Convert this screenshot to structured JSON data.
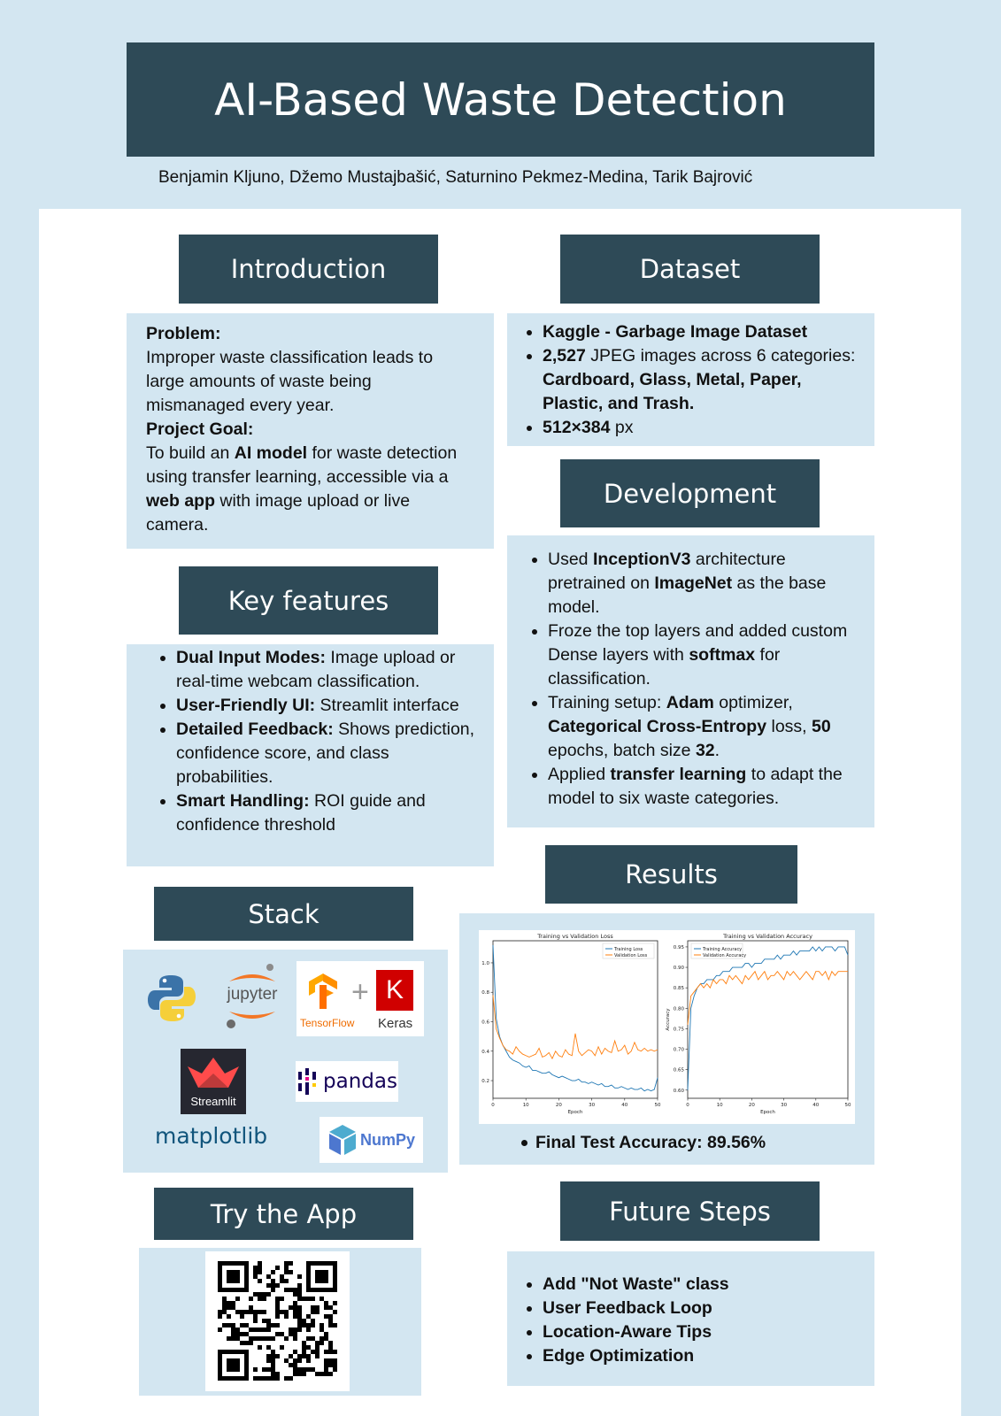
{
  "header": {
    "title": "AI-Based Waste Detection",
    "authors": "Benjamin Kljuno, Džemo Mustajbašić, Saturnino Pekmez-Medina, Tarik Bajrović"
  },
  "introduction": {
    "heading": "Introduction",
    "problem_label": "Problem:",
    "problem_text": "Improper waste classification leads to large amounts of waste being mismanaged every year.",
    "goal_label": "Project Goal:",
    "goal_1": "To build an ",
    "goal_bold_1": "AI model",
    "goal_2": " for waste detection using transfer learning, accessible via a ",
    "goal_bold_2": "web app",
    "goal_3": " with image upload or live camera."
  },
  "dataset": {
    "heading": "Dataset",
    "item1_bold": "Kaggle - Garbage Image Dataset",
    "item2_bold1": "2,527",
    "item2_text": " JPEG images across 6 categories: ",
    "item2_bold2": "Cardboard, Glass, Metal, Paper, Plastic, and Trash.",
    "item3_bold": "512×384",
    "item3_text": " px"
  },
  "key_features": {
    "heading": "Key features",
    "items": [
      {
        "label": "Dual Input Modes:",
        "text": " Image upload or real-time webcam classification."
      },
      {
        "label": "User-Friendly UI:",
        "text": " Streamlit interface"
      },
      {
        "label": "Detailed Feedback:",
        "text": " Shows prediction, confidence score, and class probabilities."
      },
      {
        "label": "Smart Handling:",
        "text": " ROI guide and confidence threshold"
      }
    ]
  },
  "development": {
    "heading": "Development",
    "i1_a": "Used ",
    "i1_b": "InceptionV3",
    "i1_c": " architecture pretrained on ",
    "i1_d": "ImageNet",
    "i1_e": " as the base model.",
    "i2_a": "Froze the top layers and added custom Dense layers with ",
    "i2_b": "softmax",
    "i2_c": " for classification.",
    "i3_a": "Training setup: ",
    "i3_b": "Adam",
    "i3_c": " optimizer, ",
    "i3_d": "Categorical Cross-Entropy",
    "i3_e": " loss, ",
    "i3_f": "50",
    "i3_g": " epochs, batch size ",
    "i3_h": "32",
    "i3_i": ".",
    "i4_a": "Applied ",
    "i4_b": "transfer learning",
    "i4_c": " to adapt the model to six waste categories."
  },
  "stack": {
    "heading": "Stack",
    "jupyter": "jupyter",
    "tensorflow": "TensorFlow",
    "plus": "+",
    "keras_letter": "K",
    "keras": "Keras",
    "streamlit": "Streamlit",
    "pandas": "pandas",
    "matplotlib": "matplotlib",
    "numpy": "NumPy"
  },
  "results": {
    "heading": "Results",
    "final_accuracy": "Final Test Accuracy: 89.56%"
  },
  "try_app": {
    "heading": "Try the App"
  },
  "future_steps": {
    "heading": "Future Steps",
    "items": [
      "Add \"Not Waste\" class",
      "User Feedback Loop",
      "Location-Aware Tips",
      "Edge Optimization"
    ]
  },
  "chart_data": [
    {
      "type": "line",
      "title": "Training vs Validation Loss",
      "xlabel": "Epoch",
      "ylabel": "",
      "xlim": [
        0,
        50
      ],
      "ylim": [
        0.08,
        1.15
      ],
      "xticks": [
        0,
        10,
        20,
        30,
        40,
        50
      ],
      "yticks": [
        0.2,
        0.4,
        0.6,
        0.8,
        1.0
      ],
      "legend": "top-right",
      "grid": false,
      "series": [
        {
          "name": "Training Loss",
          "color": "#1f77b4",
          "values": [
            1.12,
            0.62,
            0.5,
            0.44,
            0.4,
            0.36,
            0.34,
            0.33,
            0.32,
            0.3,
            0.29,
            0.3,
            0.27,
            0.27,
            0.26,
            0.25,
            0.25,
            0.26,
            0.24,
            0.23,
            0.22,
            0.23,
            0.22,
            0.21,
            0.2,
            0.2,
            0.21,
            0.19,
            0.19,
            0.18,
            0.19,
            0.18,
            0.17,
            0.18,
            0.16,
            0.16,
            0.17,
            0.15,
            0.15,
            0.16,
            0.15,
            0.14,
            0.15,
            0.14,
            0.14,
            0.15,
            0.13,
            0.14,
            0.13,
            0.14,
            0.22
          ]
        },
        {
          "name": "Validation Loss",
          "color": "#ff7f0e",
          "values": [
            0.78,
            0.55,
            0.49,
            0.44,
            0.41,
            0.4,
            0.38,
            0.43,
            0.4,
            0.38,
            0.37,
            0.36,
            0.37,
            0.38,
            0.42,
            0.36,
            0.37,
            0.39,
            0.35,
            0.4,
            0.37,
            0.36,
            0.41,
            0.38,
            0.37,
            0.52,
            0.4,
            0.37,
            0.39,
            0.41,
            0.4,
            0.37,
            0.43,
            0.38,
            0.42,
            0.4,
            0.39,
            0.47,
            0.4,
            0.41,
            0.44,
            0.38,
            0.4,
            0.46,
            0.41,
            0.4,
            0.42,
            0.4,
            0.41,
            0.4,
            0.41
          ]
        }
      ]
    },
    {
      "type": "line",
      "title": "Training vs Validation Accuracy",
      "xlabel": "Epoch",
      "ylabel": "Accuracy",
      "xlim": [
        0,
        50
      ],
      "ylim": [
        0.58,
        0.965
      ],
      "xticks": [
        0,
        10,
        20,
        30,
        40,
        50
      ],
      "yticks": [
        0.6,
        0.65,
        0.7,
        0.75,
        0.8,
        0.85,
        0.9,
        0.95
      ],
      "legend": "top-left",
      "grid": false,
      "series": [
        {
          "name": "Training Accuracy",
          "color": "#1f77b4",
          "values": [
            0.6,
            0.8,
            0.83,
            0.85,
            0.86,
            0.86,
            0.87,
            0.87,
            0.87,
            0.88,
            0.88,
            0.89,
            0.89,
            0.89,
            0.9,
            0.9,
            0.9,
            0.9,
            0.91,
            0.91,
            0.9,
            0.91,
            0.91,
            0.91,
            0.92,
            0.92,
            0.92,
            0.92,
            0.93,
            0.92,
            0.93,
            0.93,
            0.93,
            0.94,
            0.93,
            0.94,
            0.94,
            0.94,
            0.94,
            0.95,
            0.94,
            0.95,
            0.94,
            0.95,
            0.95,
            0.95,
            0.94,
            0.95,
            0.95,
            0.95,
            0.93
          ]
        },
        {
          "name": "Validation Accuracy",
          "color": "#ff7f0e",
          "values": [
            0.76,
            0.83,
            0.84,
            0.85,
            0.86,
            0.85,
            0.86,
            0.85,
            0.87,
            0.86,
            0.87,
            0.87,
            0.86,
            0.88,
            0.87,
            0.88,
            0.87,
            0.86,
            0.88,
            0.87,
            0.88,
            0.89,
            0.87,
            0.88,
            0.89,
            0.87,
            0.88,
            0.88,
            0.89,
            0.88,
            0.87,
            0.89,
            0.88,
            0.89,
            0.88,
            0.87,
            0.88,
            0.89,
            0.88,
            0.87,
            0.89,
            0.89,
            0.88,
            0.89,
            0.87,
            0.89,
            0.88,
            0.89,
            0.89,
            0.89,
            0.89
          ]
        }
      ]
    }
  ]
}
